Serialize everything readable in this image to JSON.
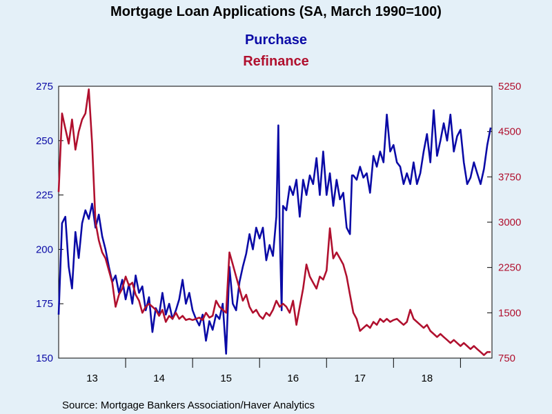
{
  "chart_data": {
    "type": "line",
    "title": "Mortgage Loan Applications (SA, March 1990=100)",
    "legend": [
      "Purchase",
      "Refinance"
    ],
    "source": "Source:  Mortgage Bankers Association/Haver Analytics",
    "x_axis": {
      "range": [
        2012.5,
        2018.97
      ],
      "tick_positions": [
        2013,
        2014,
        2015,
        2016,
        2017,
        2018
      ],
      "labels": [
        "13",
        "14",
        "15",
        "16",
        "17",
        "18"
      ]
    },
    "y_left": {
      "label": "",
      "range": [
        150,
        275
      ],
      "ticks": [
        150,
        175,
        200,
        225,
        250,
        275
      ],
      "tick_labels": [
        "150",
        "175",
        "200",
        "225",
        "250",
        "275"
      ]
    },
    "y_right": {
      "label": "",
      "range": [
        750,
        5250
      ],
      "ticks": [
        750,
        1500,
        2250,
        3000,
        3750,
        4500,
        5250
      ],
      "tick_labels": [
        "750",
        "1500",
        "2250",
        "3000",
        "3750",
        "4500",
        "5250"
      ]
    },
    "grid": false,
    "series": [
      {
        "name": "Purchase",
        "axis": "left",
        "color": "#0a0aa6",
        "points": [
          [
            2012.5,
            170
          ],
          [
            2012.55,
            212
          ],
          [
            2012.6,
            215
          ],
          [
            2012.65,
            192
          ],
          [
            2012.7,
            182
          ],
          [
            2012.75,
            208
          ],
          [
            2012.8,
            196
          ],
          [
            2012.85,
            212
          ],
          [
            2012.9,
            218
          ],
          [
            2012.95,
            214
          ],
          [
            2013.0,
            221
          ],
          [
            2013.05,
            210
          ],
          [
            2013.1,
            216
          ],
          [
            2013.15,
            206
          ],
          [
            2013.2,
            200
          ],
          [
            2013.25,
            192
          ],
          [
            2013.3,
            185
          ],
          [
            2013.35,
            188
          ],
          [
            2013.4,
            180
          ],
          [
            2013.45,
            186
          ],
          [
            2013.5,
            177
          ],
          [
            2013.55,
            184
          ],
          [
            2013.6,
            175
          ],
          [
            2013.65,
            188
          ],
          [
            2013.7,
            180
          ],
          [
            2013.75,
            183
          ],
          [
            2013.8,
            172
          ],
          [
            2013.85,
            178
          ],
          [
            2013.9,
            162
          ],
          [
            2013.95,
            173
          ],
          [
            2014.0,
            170
          ],
          [
            2014.05,
            180
          ],
          [
            2014.1,
            170
          ],
          [
            2014.15,
            175
          ],
          [
            2014.2,
            168
          ],
          [
            2014.25,
            172
          ],
          [
            2014.3,
            177
          ],
          [
            2014.35,
            186
          ],
          [
            2014.4,
            175
          ],
          [
            2014.45,
            180
          ],
          [
            2014.5,
            172
          ],
          [
            2014.55,
            168
          ],
          [
            2014.6,
            165
          ],
          [
            2014.65,
            170
          ],
          [
            2014.7,
            158
          ],
          [
            2014.75,
            167
          ],
          [
            2014.8,
            163
          ],
          [
            2014.85,
            170
          ],
          [
            2014.9,
            168
          ],
          [
            2014.95,
            175
          ],
          [
            2015.0,
            152
          ],
          [
            2015.05,
            192
          ],
          [
            2015.1,
            175
          ],
          [
            2015.15,
            172
          ],
          [
            2015.2,
            185
          ],
          [
            2015.25,
            192
          ],
          [
            2015.3,
            198
          ],
          [
            2015.35,
            207
          ],
          [
            2015.4,
            200
          ],
          [
            2015.45,
            210
          ],
          [
            2015.5,
            205
          ],
          [
            2015.55,
            210
          ],
          [
            2015.6,
            195
          ],
          [
            2015.65,
            202
          ],
          [
            2015.7,
            197
          ],
          [
            2015.75,
            215
          ],
          [
            2015.78,
            257
          ],
          [
            2015.8,
            210
          ],
          [
            2015.83,
            172
          ],
          [
            2015.85,
            220
          ],
          [
            2015.9,
            218
          ],
          [
            2015.95,
            229
          ],
          [
            2016.0,
            225
          ],
          [
            2016.05,
            232
          ],
          [
            2016.1,
            215
          ],
          [
            2016.15,
            232
          ],
          [
            2016.2,
            225
          ],
          [
            2016.25,
            234
          ],
          [
            2016.3,
            230
          ],
          [
            2016.35,
            242
          ],
          [
            2016.4,
            225
          ],
          [
            2016.45,
            245
          ],
          [
            2016.5,
            225
          ],
          [
            2016.55,
            235
          ],
          [
            2016.6,
            220
          ],
          [
            2016.65,
            232
          ],
          [
            2016.7,
            223
          ],
          [
            2016.75,
            226
          ],
          [
            2016.8,
            210
          ],
          [
            2016.85,
            207
          ],
          [
            2016.88,
            234
          ],
          [
            2016.9,
            234
          ],
          [
            2016.95,
            232
          ],
          [
            2017.0,
            238
          ],
          [
            2017.05,
            233
          ],
          [
            2017.1,
            235
          ],
          [
            2017.15,
            226
          ],
          [
            2017.2,
            243
          ],
          [
            2017.25,
            238
          ],
          [
            2017.3,
            245
          ],
          [
            2017.35,
            240
          ],
          [
            2017.4,
            262
          ],
          [
            2017.45,
            245
          ],
          [
            2017.5,
            248
          ],
          [
            2017.55,
            240
          ],
          [
            2017.6,
            238
          ],
          [
            2017.65,
            230
          ],
          [
            2017.7,
            235
          ],
          [
            2017.75,
            230
          ],
          [
            2017.8,
            240
          ],
          [
            2017.85,
            230
          ],
          [
            2017.9,
            235
          ],
          [
            2017.95,
            245
          ],
          [
            2018.0,
            253
          ],
          [
            2018.05,
            240
          ],
          [
            2018.1,
            264
          ],
          [
            2018.15,
            243
          ],
          [
            2018.2,
            250
          ],
          [
            2018.25,
            258
          ],
          [
            2018.3,
            250
          ],
          [
            2018.35,
            262
          ],
          [
            2018.4,
            245
          ],
          [
            2018.45,
            252
          ],
          [
            2018.5,
            255
          ],
          [
            2018.55,
            240
          ],
          [
            2018.6,
            230
          ],
          [
            2018.65,
            233
          ],
          [
            2018.7,
            240
          ],
          [
            2018.75,
            235
          ],
          [
            2018.8,
            230
          ],
          [
            2018.85,
            237
          ],
          [
            2018.9,
            248
          ],
          [
            2018.95,
            256
          ]
        ]
      },
      {
        "name": "Refinance",
        "axis": "right",
        "color": "#b0102e",
        "points": [
          [
            2012.5,
            3500
          ],
          [
            2012.55,
            4800
          ],
          [
            2012.6,
            4550
          ],
          [
            2012.65,
            4300
          ],
          [
            2012.7,
            4700
          ],
          [
            2012.75,
            4200
          ],
          [
            2012.8,
            4500
          ],
          [
            2012.85,
            4700
          ],
          [
            2012.9,
            4800
          ],
          [
            2012.95,
            5200
          ],
          [
            2013.0,
            4300
          ],
          [
            2013.05,
            3000
          ],
          [
            2013.1,
            2700
          ],
          [
            2013.15,
            2500
          ],
          [
            2013.2,
            2400
          ],
          [
            2013.25,
            2200
          ],
          [
            2013.3,
            2000
          ],
          [
            2013.35,
            1600
          ],
          [
            2013.4,
            1800
          ],
          [
            2013.45,
            1900
          ],
          [
            2013.5,
            2100
          ],
          [
            2013.55,
            1950
          ],
          [
            2013.6,
            2000
          ],
          [
            2013.65,
            1800
          ],
          [
            2013.7,
            1700
          ],
          [
            2013.75,
            1500
          ],
          [
            2013.8,
            1600
          ],
          [
            2013.85,
            1650
          ],
          [
            2013.9,
            1600
          ],
          [
            2013.95,
            1550
          ],
          [
            2014.0,
            1450
          ],
          [
            2014.05,
            1550
          ],
          [
            2014.1,
            1350
          ],
          [
            2014.15,
            1450
          ],
          [
            2014.2,
            1400
          ],
          [
            2014.25,
            1500
          ],
          [
            2014.3,
            1400
          ],
          [
            2014.35,
            1450
          ],
          [
            2014.4,
            1380
          ],
          [
            2014.45,
            1400
          ],
          [
            2014.5,
            1380
          ],
          [
            2014.55,
            1400
          ],
          [
            2014.6,
            1420
          ],
          [
            2014.65,
            1380
          ],
          [
            2014.7,
            1500
          ],
          [
            2014.75,
            1420
          ],
          [
            2014.8,
            1450
          ],
          [
            2014.85,
            1700
          ],
          [
            2014.9,
            1600
          ],
          [
            2014.95,
            1550
          ],
          [
            2015.0,
            1500
          ],
          [
            2015.05,
            2500
          ],
          [
            2015.1,
            2300
          ],
          [
            2015.15,
            2100
          ],
          [
            2015.2,
            1900
          ],
          [
            2015.25,
            1700
          ],
          [
            2015.3,
            1800
          ],
          [
            2015.35,
            1600
          ],
          [
            2015.4,
            1500
          ],
          [
            2015.45,
            1550
          ],
          [
            2015.5,
            1450
          ],
          [
            2015.55,
            1400
          ],
          [
            2015.6,
            1500
          ],
          [
            2015.65,
            1450
          ],
          [
            2015.7,
            1550
          ],
          [
            2015.75,
            1700
          ],
          [
            2015.8,
            1600
          ],
          [
            2015.85,
            1650
          ],
          [
            2015.9,
            1600
          ],
          [
            2015.95,
            1500
          ],
          [
            2016.0,
            1700
          ],
          [
            2016.05,
            1300
          ],
          [
            2016.1,
            1600
          ],
          [
            2016.15,
            1900
          ],
          [
            2016.2,
            2300
          ],
          [
            2016.25,
            2100
          ],
          [
            2016.3,
            2000
          ],
          [
            2016.35,
            1900
          ],
          [
            2016.4,
            2100
          ],
          [
            2016.45,
            2050
          ],
          [
            2016.5,
            2200
          ],
          [
            2016.55,
            2900
          ],
          [
            2016.6,
            2400
          ],
          [
            2016.65,
            2500
          ],
          [
            2016.7,
            2400
          ],
          [
            2016.75,
            2300
          ],
          [
            2016.8,
            2100
          ],
          [
            2016.85,
            1800
          ],
          [
            2016.9,
            1500
          ],
          [
            2016.95,
            1400
          ],
          [
            2017.0,
            1200
          ],
          [
            2017.05,
            1250
          ],
          [
            2017.1,
            1300
          ],
          [
            2017.15,
            1250
          ],
          [
            2017.2,
            1350
          ],
          [
            2017.25,
            1300
          ],
          [
            2017.3,
            1400
          ],
          [
            2017.35,
            1350
          ],
          [
            2017.4,
            1400
          ],
          [
            2017.45,
            1350
          ],
          [
            2017.5,
            1380
          ],
          [
            2017.55,
            1400
          ],
          [
            2017.6,
            1350
          ],
          [
            2017.65,
            1300
          ],
          [
            2017.7,
            1350
          ],
          [
            2017.75,
            1550
          ],
          [
            2017.8,
            1400
          ],
          [
            2017.85,
            1350
          ],
          [
            2017.9,
            1300
          ],
          [
            2017.95,
            1250
          ],
          [
            2018.0,
            1300
          ],
          [
            2018.05,
            1200
          ],
          [
            2018.1,
            1150
          ],
          [
            2018.15,
            1100
          ],
          [
            2018.2,
            1150
          ],
          [
            2018.25,
            1100
          ],
          [
            2018.3,
            1050
          ],
          [
            2018.35,
            1000
          ],
          [
            2018.4,
            1050
          ],
          [
            2018.45,
            1000
          ],
          [
            2018.5,
            950
          ],
          [
            2018.55,
            1000
          ],
          [
            2018.6,
            950
          ],
          [
            2018.65,
            900
          ],
          [
            2018.7,
            950
          ],
          [
            2018.75,
            900
          ],
          [
            2018.8,
            850
          ],
          [
            2018.85,
            800
          ],
          [
            2018.9,
            850
          ],
          [
            2018.95,
            850
          ]
        ]
      }
    ]
  }
}
